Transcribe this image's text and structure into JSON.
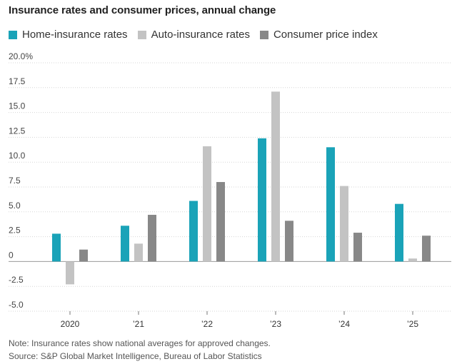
{
  "chart_data": {
    "type": "bar",
    "title": "Insurance rates and consumer prices, annual change",
    "categories": [
      "2020",
      "’21",
      "’22",
      "’23",
      "’24",
      "’25"
    ],
    "series": [
      {
        "name": "Home-insurance rates",
        "color": "#1aa3b8",
        "values": [
          2.8,
          3.6,
          6.1,
          12.4,
          11.5,
          5.8
        ]
      },
      {
        "name": "Auto-insurance rates",
        "color": "#c3c3c3",
        "values": [
          -2.3,
          1.8,
          11.6,
          17.1,
          7.6,
          0.3
        ]
      },
      {
        "name": "Consumer price index",
        "color": "#888888",
        "values": [
          1.2,
          4.7,
          8.0,
          4.1,
          2.9,
          2.6
        ]
      }
    ],
    "yticks": [
      "20.0%",
      "17.5",
      "15.0",
      "12.5",
      "10.0",
      "7.5",
      "5.0",
      "2.5",
      "0",
      "-2.5",
      "-5.0"
    ],
    "ytick_values": [
      20,
      17.5,
      15,
      12.5,
      10,
      7.5,
      5,
      2.5,
      0,
      -2.5,
      -5
    ],
    "ylim": [
      -5,
      20
    ],
    "grid": true,
    "legend_position": "top-left"
  },
  "notes": {
    "note": "Note: Insurance rates show national averages for approved changes.",
    "source": "Source: S&P Global Market Intelligence, Bureau of Labor Statistics"
  }
}
